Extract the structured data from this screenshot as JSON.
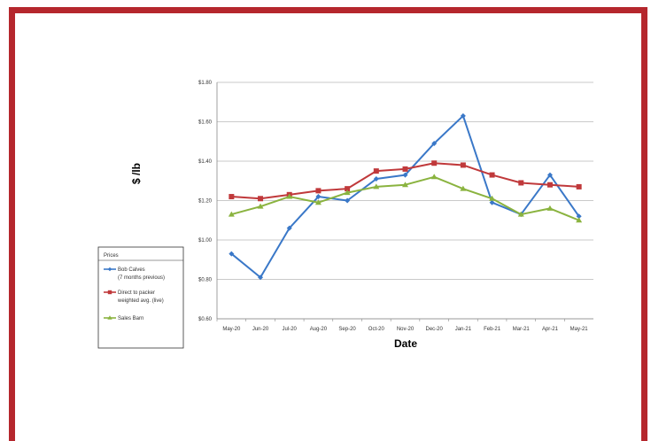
{
  "colors": {
    "frame": "#b5272d",
    "series": [
      "#3a78c8",
      "#c0393b",
      "#8ab33f"
    ]
  },
  "chart_data": {
    "type": "line",
    "title": "",
    "xlabel": "Date",
    "ylabel": "$ /lb",
    "x": [
      "May-20",
      "Jun-20",
      "Jul-20",
      "Aug-20",
      "Sep-20",
      "Oct-20",
      "Nov-20",
      "Dec-20",
      "Jan-21",
      "Feb-21",
      "Mar-21",
      "Apr-21",
      "May-21"
    ],
    "ylim": [
      0.6,
      1.8
    ],
    "yticks": [
      "$0.60",
      "$0.80",
      "$1.00",
      "$1.20",
      "$1.40",
      "$1.60",
      "$1.80"
    ],
    "ytick_values": [
      0.6,
      0.8,
      1.0,
      1.2,
      1.4,
      1.6,
      1.8
    ],
    "grid": true,
    "legend": {
      "title": "Prices",
      "position": "left",
      "entries": [
        [
          "Bob Calves",
          "(7 months previous)"
        ],
        [
          "Direct to packer",
          "weighted avg. (live)"
        ],
        [
          "Sales Barn"
        ]
      ]
    },
    "series": [
      {
        "name": "Bob Calves (7 months previous)",
        "marker": "diamond",
        "values": [
          0.93,
          0.81,
          1.06,
          1.22,
          1.2,
          1.31,
          1.33,
          1.49,
          1.63,
          1.19,
          1.13,
          1.33,
          1.12
        ]
      },
      {
        "name": "Direct to packer weighted avg. (live)",
        "marker": "square",
        "values": [
          1.22,
          1.21,
          1.23,
          1.25,
          1.26,
          1.35,
          1.36,
          1.39,
          1.38,
          1.33,
          1.29,
          1.28,
          1.27
        ]
      },
      {
        "name": "Sales Barn",
        "marker": "triangle",
        "values": [
          1.13,
          1.17,
          1.22,
          1.19,
          1.24,
          1.27,
          1.28,
          1.32,
          1.26,
          1.21,
          1.13,
          1.16,
          1.1
        ]
      }
    ]
  }
}
